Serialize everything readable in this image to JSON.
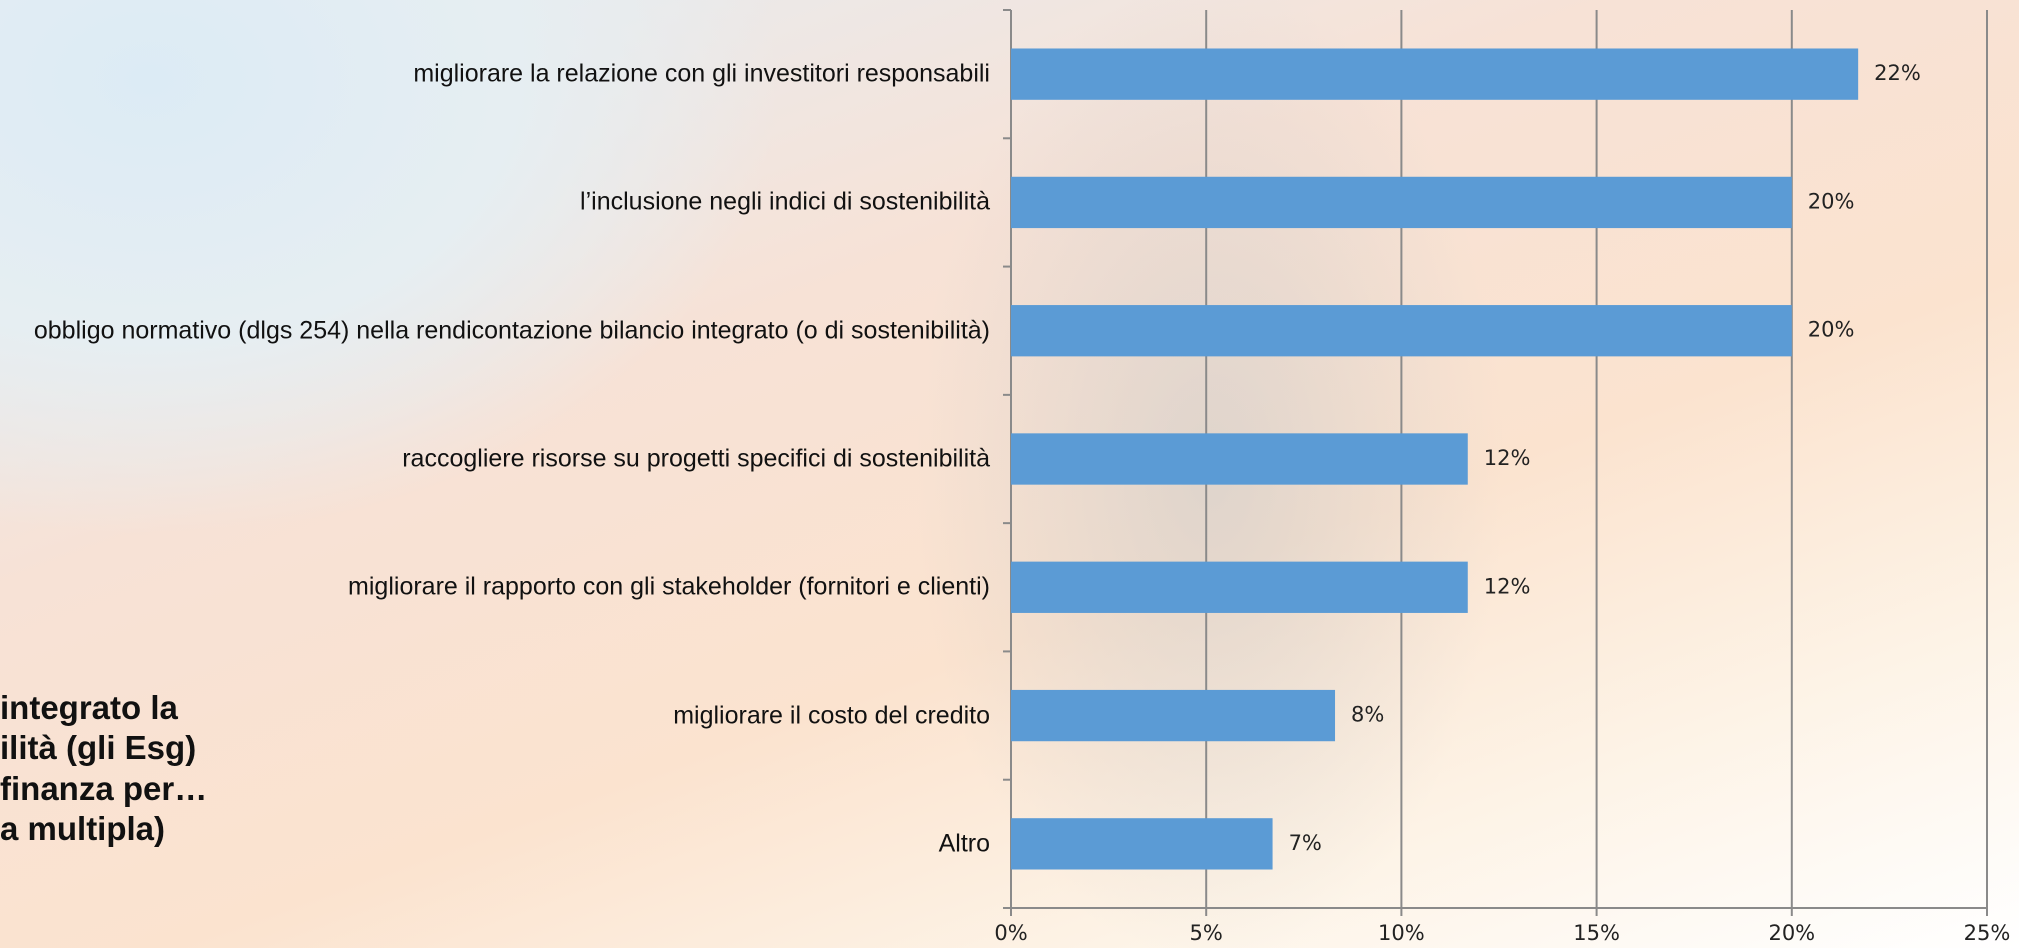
{
  "chart_data": {
    "type": "bar",
    "orientation": "horizontal",
    "annotation_lines": [
      "integrato la",
      "ilità (gli Esg)",
      "finanza per…",
      "a multipla)"
    ],
    "categories": [
      "migliorare la relazione con gli investitori responsabili",
      "l’inclusione negli indici di sostenibilità",
      "obbligo normativo (dlgs 254) nella rendicontazione bilancio integrato (o di sostenibilità)",
      "raccogliere risorse su progetti specifici di sostenibilità",
      "migliorare il rapporto con gli stakeholder (fornitori e clienti)",
      "migliorare il costo del credito",
      "Altro"
    ],
    "values": [
      21.7,
      20.0,
      20.0,
      11.7,
      11.7,
      8.3,
      6.7
    ],
    "value_labels": [
      "22%",
      "20%",
      "20%",
      "12%",
      "12%",
      "8%",
      "7%"
    ],
    "color": "#5b9bd5",
    "xlim": [
      0,
      25
    ],
    "xticks": [
      {
        "value": 0,
        "label": "0%"
      },
      {
        "value": 5,
        "label": "5%"
      },
      {
        "value": 10,
        "label": "10%"
      },
      {
        "value": 15,
        "label": "15%"
      },
      {
        "value": 20,
        "label": "20%"
      },
      {
        "value": 25,
        "label": "25%"
      }
    ],
    "grid": true
  }
}
